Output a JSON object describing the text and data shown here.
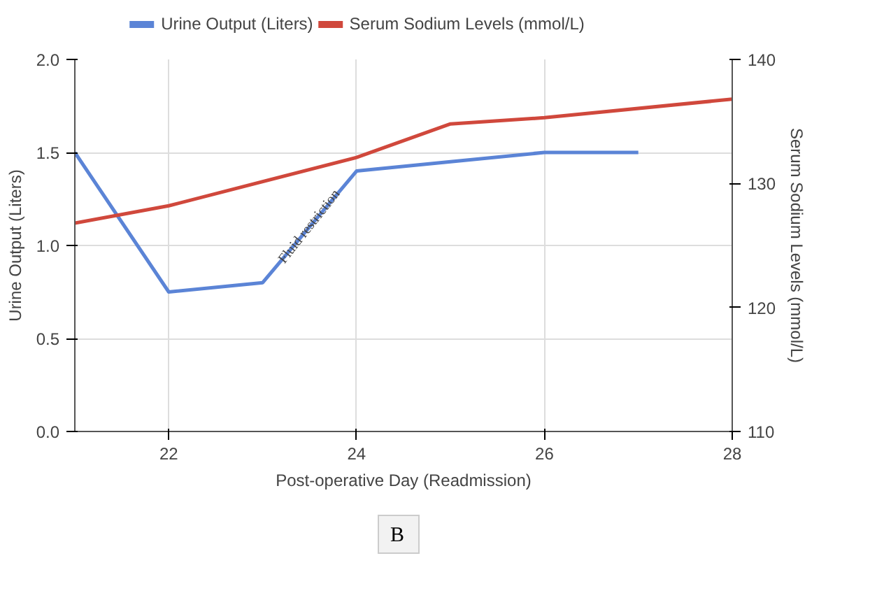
{
  "chart_data": {
    "type": "line",
    "xlabel": "Post-operative Day (Readmission)",
    "ylabel": "Urine Output (Liters)",
    "y2label": "Serum Sodium Levels (mmol/L)",
    "series": [
      {
        "name": "Urine Output (Liters)",
        "color": "#5b84d6",
        "x": [
          21,
          22,
          23,
          24,
          25,
          26,
          27
        ],
        "values": [
          1.5,
          0.75,
          0.8,
          1.4,
          1.45,
          1.5,
          1.5
        ]
      },
      {
        "name": "Serum Sodium Levels (mmol/L)",
        "color": "#d0483c",
        "axis": "y2",
        "x": [
          21,
          22,
          24,
          25,
          26,
          28
        ],
        "values": [
          126.8,
          128.2,
          132.1,
          134.8,
          135.3,
          136.8
        ]
      }
    ],
    "xlim": [
      21,
      28
    ],
    "xticks": [
      22,
      24,
      26,
      28
    ],
    "ylim": [
      0,
      2.0
    ],
    "yticks": [
      {
        "value": 0,
        "label": "0.0"
      },
      {
        "value": 0.5,
        "label": "0.5"
      },
      {
        "value": 1.0,
        "label": "1.0"
      },
      {
        "value": 1.5,
        "label": "1.5"
      },
      {
        "value": 2.0,
        "label": "2.0"
      }
    ],
    "y2lim": [
      110,
      140
    ],
    "y2ticks": [
      110,
      120,
      130,
      140
    ],
    "annotations": [
      {
        "text": "Fluid restriction",
        "x": 23.5,
        "y": 1.1
      },
      "B"
    ],
    "grid": true,
    "legend": "top",
    "marker": "none",
    "line_style": "solid"
  }
}
